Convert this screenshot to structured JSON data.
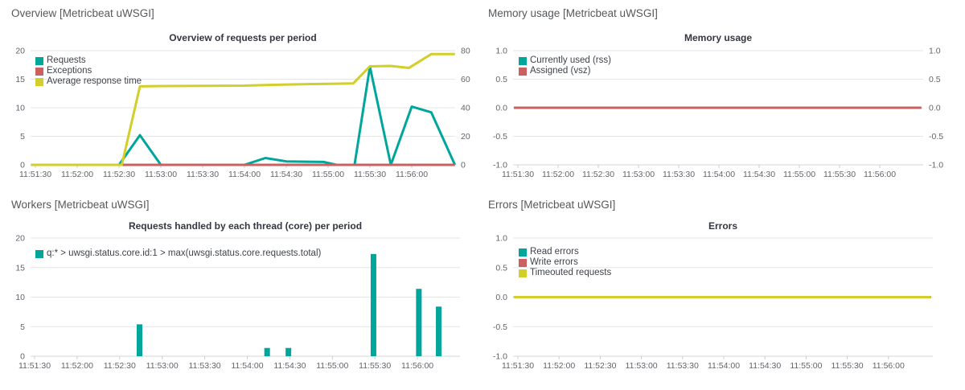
{
  "app": {
    "background": "#ffffff"
  },
  "colors": {
    "teal": "#00A69B",
    "red": "#CB6060",
    "yellow": "#D2CE2A",
    "grid": "#E6E6E6",
    "grid_bottom": "#D6D6D6",
    "tick_mark": "#C9CDD1",
    "axis_label": "#60646A",
    "legend_label": "#3F4349",
    "chart_title": "#343741",
    "panel_title": "#55595C"
  },
  "x_axis": {
    "tick_labels": [
      "11:51:30",
      "11:52:00",
      "11:52:30",
      "11:53:00",
      "11:53:30",
      "11:54:00",
      "11:54:30",
      "11:55:00",
      "11:55:30",
      "11:56:00"
    ],
    "tick_seconds": [
      0,
      30,
      60,
      90,
      120,
      150,
      180,
      210,
      240,
      270
    ],
    "domain_seconds": [
      0,
      300
    ]
  },
  "chart_data": [
    {
      "id": "overview",
      "panel_title": "Overview [Metricbeat uWSGI]",
      "chart_title": "Overview of requests per period",
      "type": "line",
      "grid": true,
      "legend_position": "top-left-inside",
      "left_axis": {
        "tick_labels": [
          "20",
          "15",
          "10",
          "5",
          "0"
        ],
        "range": [
          0,
          20
        ]
      },
      "right_axis": {
        "tick_labels": [
          "80",
          "60",
          "40",
          "20",
          "0"
        ],
        "range": [
          0,
          80
        ]
      },
      "legend": [
        {
          "label": "Requests",
          "color_key": "teal"
        },
        {
          "label": "Exceptions",
          "color_key": "red"
        },
        {
          "label": "Average response time",
          "color_key": "yellow"
        }
      ],
      "series": [
        {
          "name": "Requests",
          "color_key": "teal",
          "axis": "left",
          "type": "line",
          "points": [
            [
              -3,
              0
            ],
            [
              60,
              0
            ],
            [
              75,
              5.2
            ],
            [
              90,
              0
            ],
            [
              150,
              0
            ],
            [
              165,
              1.2
            ],
            [
              180,
              0.6
            ],
            [
              207,
              0.5
            ],
            [
              216,
              0
            ],
            [
              229,
              0
            ],
            [
              240,
              17.2
            ],
            [
              255,
              0
            ],
            [
              270,
              10.2
            ],
            [
              284,
              9.2
            ],
            [
              301,
              0
            ]
          ]
        },
        {
          "name": "Exceptions",
          "color_key": "red",
          "axis": "left",
          "type": "line",
          "points": [
            [
              -3,
              0
            ],
            [
              301,
              0
            ]
          ]
        },
        {
          "name": "Average response time",
          "color_key": "yellow",
          "axis": "right",
          "type": "line",
          "points": [
            [
              -3,
              0
            ],
            [
              62,
              0
            ],
            [
              75,
              55
            ],
            [
              90,
              55.2
            ],
            [
              150,
              55.5
            ],
            [
              165,
              55.9
            ],
            [
              180,
              56.3
            ],
            [
              210,
              56.8
            ],
            [
              228,
              57
            ],
            [
              240,
              69
            ],
            [
              255,
              69.3
            ],
            [
              268,
              67.9
            ],
            [
              284,
              77.6
            ],
            [
              301,
              77.6
            ]
          ]
        }
      ]
    },
    {
      "id": "memory",
      "panel_title": "Memory usage [Metricbeat uWSGI]",
      "chart_title": "Memory usage",
      "type": "line",
      "grid": true,
      "legend_position": "top-left-inside",
      "left_axis": {
        "tick_labels": [
          "1.0",
          "0.5",
          "0.0",
          "-0.5",
          "-1.0"
        ],
        "range": [
          -1,
          1
        ]
      },
      "right_axis": {
        "tick_labels": [
          "1.0",
          "0.5",
          "0.0",
          "-0.5",
          "-1.0"
        ],
        "range": [
          -1,
          1
        ]
      },
      "legend": [
        {
          "label": "Currently used (rss)",
          "color_key": "teal"
        },
        {
          "label": "Assigned (vsz)",
          "color_key": "red"
        }
      ],
      "series": [
        {
          "name": "Currently used (rss)",
          "color_key": "teal",
          "axis": "left",
          "type": "line",
          "points": [
            [
              -3,
              0
            ],
            [
              301,
              0
            ]
          ]
        },
        {
          "name": "Assigned (vsz)",
          "color_key": "red",
          "axis": "left",
          "type": "line",
          "points": [
            [
              -3,
              0
            ],
            [
              301,
              0
            ]
          ]
        }
      ]
    },
    {
      "id": "workers",
      "panel_title": "Workers [Metricbeat uWSGI]",
      "chart_title": "Requests handled by each thread (core) per period",
      "type": "bar",
      "grid": true,
      "legend_position": "top-left-inside",
      "left_axis": {
        "tick_labels": [
          "20",
          "15",
          "10",
          "5",
          "0"
        ],
        "range": [
          0,
          20
        ]
      },
      "legend": [
        {
          "label": "q:* > uwsgi.status.core.id:1 > max(uwsgi.status.core.requests.total)",
          "color_key": "teal"
        }
      ],
      "series": [
        {
          "name": "q:* > uwsgi.status.core.id:1 > max(uwsgi.status.core.requests.total)",
          "color_key": "teal",
          "axis": "left",
          "type": "bar",
          "points": [
            [
              74,
              5.4
            ],
            [
              164,
              1.4
            ],
            [
              179,
              1.4
            ],
            [
              239,
              17.3
            ],
            [
              271,
              11.4
            ],
            [
              285,
              8.4
            ]
          ]
        }
      ]
    },
    {
      "id": "errors",
      "panel_title": "Errors [Metricbeat uWSGI]",
      "chart_title": "Errors",
      "type": "line",
      "grid": true,
      "legend_position": "top-left-inside",
      "left_axis": {
        "tick_labels": [
          "1.0",
          "0.5",
          "0.0",
          "-0.5",
          "-1.0"
        ],
        "range": [
          -1,
          1
        ]
      },
      "legend": [
        {
          "label": "Read errors",
          "color_key": "teal"
        },
        {
          "label": "Write errors",
          "color_key": "red"
        },
        {
          "label": "Timeouted requests",
          "color_key": "yellow"
        }
      ],
      "series": [
        {
          "name": "Read errors",
          "color_key": "teal",
          "axis": "left",
          "type": "line",
          "points": [
            [
              -3,
              0
            ],
            [
              301,
              0
            ]
          ]
        },
        {
          "name": "Write errors",
          "color_key": "red",
          "axis": "left",
          "type": "line",
          "points": [
            [
              -3,
              0
            ],
            [
              301,
              0
            ]
          ]
        },
        {
          "name": "Timeouted requests",
          "color_key": "yellow",
          "axis": "left",
          "type": "line",
          "points": [
            [
              -3,
              0
            ],
            [
              301,
              0
            ]
          ]
        }
      ]
    }
  ]
}
